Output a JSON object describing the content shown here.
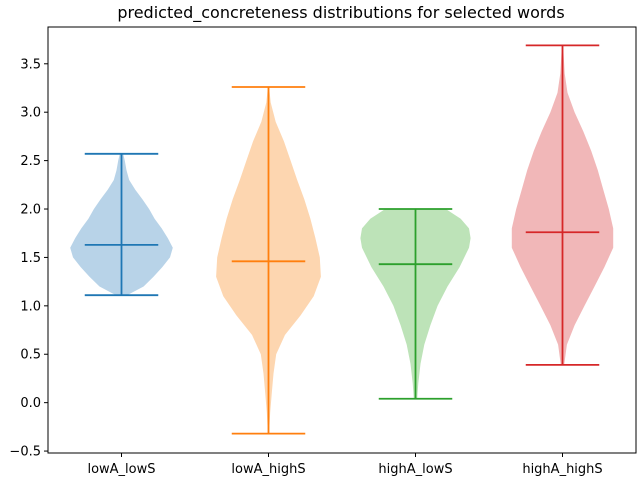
{
  "chart_data": {
    "type": "violin",
    "title": "predicted_concreteness distributions for selected words",
    "xlabel": "",
    "ylabel": "",
    "ylim": [
      -0.52,
      3.88
    ],
    "yticks": [
      -0.5,
      0.0,
      0.5,
      1.0,
      1.5,
      2.0,
      2.5,
      3.0,
      3.5
    ],
    "ytick_labels": [
      "−0.5",
      "0.0",
      "0.5",
      "1.0",
      "1.5",
      "2.0",
      "2.5",
      "3.0",
      "3.5"
    ],
    "categories": [
      "lowA_lowS",
      "lowA_highS",
      "highA_lowS",
      "highA_highS"
    ],
    "grid": false,
    "series": [
      {
        "category": "lowA_lowS",
        "color": "#1f77b4",
        "fill": "#b8d3e8",
        "min": 1.11,
        "max": 2.57,
        "mean": 1.63,
        "profile": [
          [
            1.11,
            0.1
          ],
          [
            1.2,
            0.4
          ],
          [
            1.3,
            0.58
          ],
          [
            1.4,
            0.74
          ],
          [
            1.5,
            0.88
          ],
          [
            1.6,
            0.93
          ],
          [
            1.7,
            0.84
          ],
          [
            1.8,
            0.73
          ],
          [
            1.9,
            0.6
          ],
          [
            2.0,
            0.5
          ],
          [
            2.1,
            0.38
          ],
          [
            2.2,
            0.25
          ],
          [
            2.3,
            0.14
          ],
          [
            2.4,
            0.09
          ],
          [
            2.5,
            0.06
          ],
          [
            2.57,
            0.03
          ]
        ]
      },
      {
        "category": "lowA_highS",
        "color": "#ff7f0e",
        "fill": "#fdd6b0",
        "min": -0.32,
        "max": 3.26,
        "mean": 1.46,
        "profile": [
          [
            -0.32,
            0.01
          ],
          [
            -0.1,
            0.03
          ],
          [
            0.1,
            0.06
          ],
          [
            0.3,
            0.09
          ],
          [
            0.5,
            0.14
          ],
          [
            0.7,
            0.3
          ],
          [
            0.9,
            0.58
          ],
          [
            1.1,
            0.82
          ],
          [
            1.3,
            0.95
          ],
          [
            1.5,
            0.93
          ],
          [
            1.7,
            0.85
          ],
          [
            1.9,
            0.76
          ],
          [
            2.1,
            0.65
          ],
          [
            2.3,
            0.52
          ],
          [
            2.5,
            0.4
          ],
          [
            2.7,
            0.28
          ],
          [
            2.9,
            0.13
          ],
          [
            3.1,
            0.04
          ],
          [
            3.26,
            0.01
          ]
        ]
      },
      {
        "category": "highA_lowS",
        "color": "#2ca02c",
        "fill": "#bde3b8",
        "min": 0.04,
        "max": 2.0,
        "mean": 1.43,
        "profile": [
          [
            0.04,
            0.03
          ],
          [
            0.2,
            0.05
          ],
          [
            0.4,
            0.09
          ],
          [
            0.6,
            0.16
          ],
          [
            0.8,
            0.27
          ],
          [
            1.0,
            0.4
          ],
          [
            1.2,
            0.58
          ],
          [
            1.4,
            0.8
          ],
          [
            1.6,
            0.97
          ],
          [
            1.7,
            1.0
          ],
          [
            1.8,
            0.97
          ],
          [
            1.9,
            0.82
          ],
          [
            2.0,
            0.55
          ]
        ]
      },
      {
        "category": "highA_highS",
        "color": "#d62728",
        "fill": "#f1b7b8",
        "min": 0.39,
        "max": 3.69,
        "mean": 1.76,
        "profile": [
          [
            0.39,
            0.03
          ],
          [
            0.6,
            0.08
          ],
          [
            0.8,
            0.22
          ],
          [
            1.0,
            0.4
          ],
          [
            1.2,
            0.58
          ],
          [
            1.4,
            0.76
          ],
          [
            1.6,
            0.92
          ],
          [
            1.8,
            0.92
          ],
          [
            2.0,
            0.84
          ],
          [
            2.2,
            0.74
          ],
          [
            2.4,
            0.64
          ],
          [
            2.6,
            0.52
          ],
          [
            2.8,
            0.38
          ],
          [
            3.0,
            0.22
          ],
          [
            3.2,
            0.09
          ],
          [
            3.4,
            0.04
          ],
          [
            3.6,
            0.02
          ],
          [
            3.69,
            0.01
          ]
        ]
      }
    ]
  }
}
